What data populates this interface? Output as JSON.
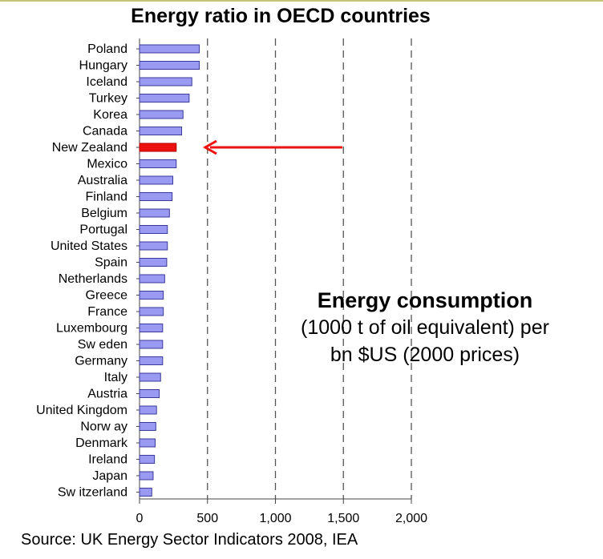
{
  "title": "Energy ratio in OECD countries",
  "note": {
    "heading": "Energy consumption",
    "body": "(1000 t of oil equivalent) per\nbn $US (2000 prices)"
  },
  "source": "Source: UK Energy Sector Indicators 2008, IEA",
  "colors": {
    "bar": "#9a9af2",
    "bar_border": "#3a3a9a",
    "highlight": "#ee1111",
    "arrow": "#ee1111",
    "gridline": "#555555"
  },
  "chart_data": {
    "type": "bar",
    "orientation": "horizontal",
    "title": "Energy ratio in OECD countries",
    "categories": [
      "Poland",
      "Hungary",
      "Iceland",
      "Turkey",
      "Korea",
      "Canada",
      "New Zealand",
      "Mexico",
      "Australia",
      "Finland",
      "Belgium",
      "Portugal",
      "United States",
      "Spain",
      "Netherlands",
      "Greece",
      "France",
      "Luxembourg",
      "Sw eden",
      "Germany",
      "Italy",
      "Austria",
      "United Kingdom",
      "Norw ay",
      "Denmark",
      "Ireland",
      "Japan",
      "Sw itzerland"
    ],
    "values": [
      440,
      440,
      385,
      365,
      320,
      310,
      270,
      270,
      245,
      240,
      220,
      205,
      205,
      200,
      185,
      175,
      175,
      170,
      170,
      170,
      155,
      145,
      125,
      120,
      115,
      110,
      100,
      90
    ],
    "highlight": "New Zealand",
    "xlim": [
      0,
      2000
    ],
    "xticks": [
      0,
      500,
      1000,
      1500,
      2000
    ],
    "xtick_labels": [
      "0",
      "500",
      "1,000",
      "1,500",
      "2,000"
    ],
    "grid": "vertical dashed at 500, 1000, 1500, 2000",
    "annotation": "arrow pointing to New Zealand"
  }
}
